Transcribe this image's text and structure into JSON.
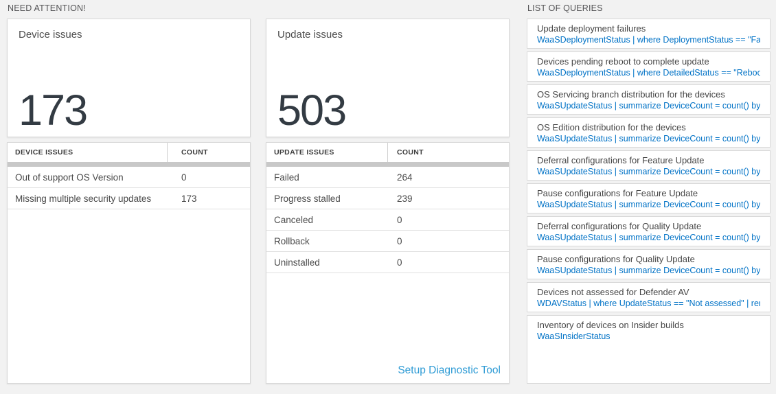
{
  "colors": {
    "page_background": "#f2f2f2",
    "accent_query_blue": "#0072c6",
    "setup_link_blue": "#2e9bd5",
    "big_number_color": "#333b43",
    "thick_bar_gray": "#c8c8c8"
  },
  "need_attention": {
    "section_title": "NEED ATTENTION!",
    "device_card": {
      "title": "Device issues",
      "value": "173",
      "table": {
        "headers": [
          "DEVICE ISSUES",
          "COUNT"
        ],
        "rows": [
          {
            "label": "Out of support OS Version",
            "count": "0"
          },
          {
            "label": "Missing multiple security updates",
            "count": "173"
          }
        ]
      }
    },
    "update_card": {
      "title": "Update issues",
      "value": "503",
      "table": {
        "headers": [
          "UPDATE ISSUES",
          "COUNT"
        ],
        "rows": [
          {
            "label": "Failed",
            "count": "264"
          },
          {
            "label": "Progress stalled",
            "count": "239"
          },
          {
            "label": "Canceled",
            "count": "0"
          },
          {
            "label": "Rollback",
            "count": "0"
          },
          {
            "label": "Uninstalled",
            "count": "0"
          }
        ]
      },
      "footer_link": "Setup Diagnostic Tool"
    }
  },
  "queries": {
    "section_title": "LIST OF QUERIES",
    "items": [
      {
        "title": "Update deployment failures",
        "query": "WaaSDeploymentStatus | where DeploymentStatus == \"Failed\" |..."
      },
      {
        "title": "Devices pending reboot to complete update",
        "query": "WaaSDeploymentStatus | where DetailedStatus == \"Reboot pend..."
      },
      {
        "title": "OS Servicing branch distribution for the devices",
        "query": "WaaSUpdateStatus | summarize DeviceCount = count() by OSSer..."
      },
      {
        "title": "OS Edition distribution for the devices",
        "query": "WaaSUpdateStatus | summarize DeviceCount = count() by OSEdit..."
      },
      {
        "title": "Deferral configurations for Feature Update",
        "query": "WaaSUpdateStatus | summarize DeviceCount = count() by Featur..."
      },
      {
        "title": "Pause configurations for Feature Update",
        "query": "WaaSUpdateStatus | summarize DeviceCount = count() by Featur..."
      },
      {
        "title": "Deferral configurations for Quality Update",
        "query": "WaaSUpdateStatus | summarize DeviceCount = count() by Qualit..."
      },
      {
        "title": "Pause configurations for Quality Update",
        "query": "WaaSUpdateStatus | summarize DeviceCount = count() by Qualit..."
      },
      {
        "title": "Devices not assessed for Defender AV",
        "query": "WDAVStatus | where UpdateStatus == \"Not assessed\" | render ta..."
      },
      {
        "title": "Inventory of devices on Insider builds",
        "query": "WaaSInsiderStatus"
      }
    ]
  }
}
